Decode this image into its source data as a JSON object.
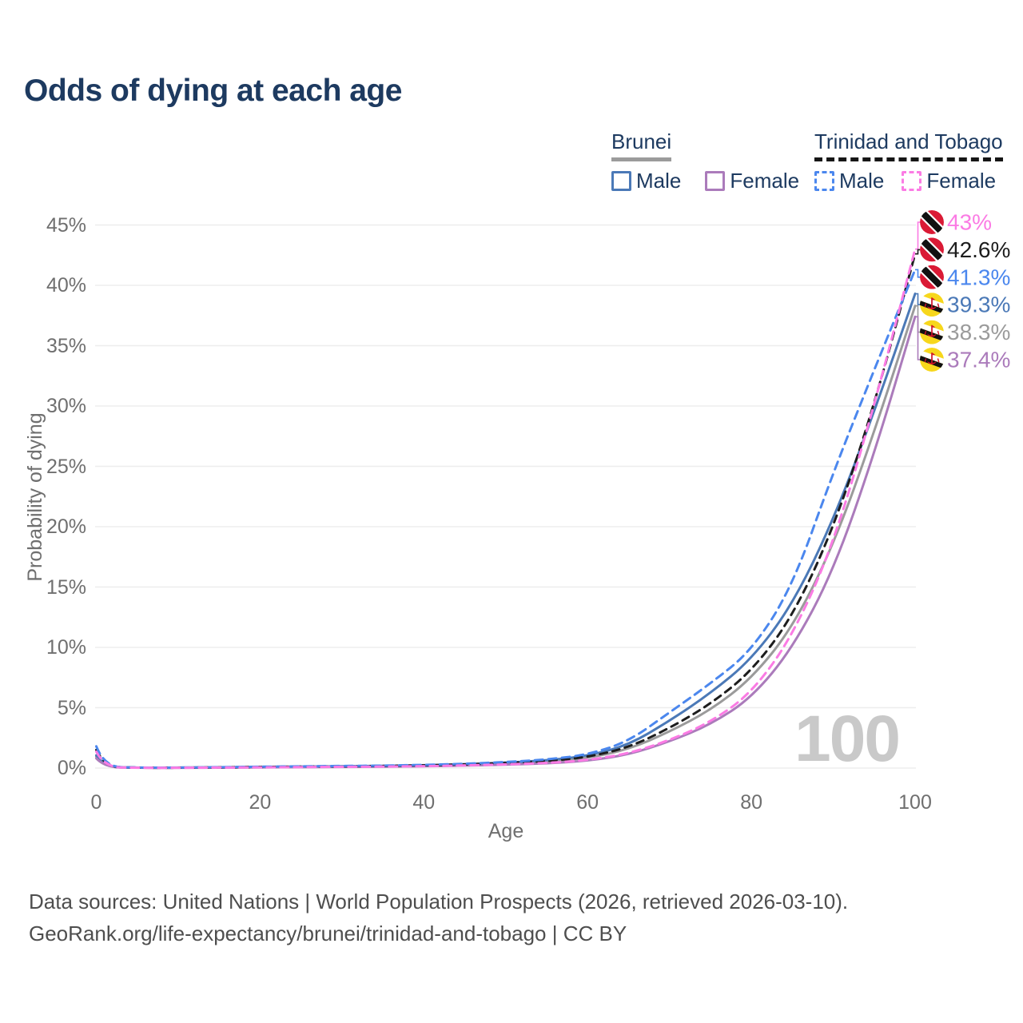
{
  "title": "Odds of dying at each age",
  "legend": {
    "groups": [
      {
        "name": "Brunei",
        "line_style": "solid",
        "items": [
          {
            "label": "Male",
            "series": "br_male"
          },
          {
            "label": "Female",
            "series": "br_female"
          }
        ]
      },
      {
        "name": "Trinidad and Tobago",
        "line_style": "dashed",
        "items": [
          {
            "label": "Male",
            "series": "tt_male"
          },
          {
            "label": "Female",
            "series": "tt_female"
          }
        ]
      }
    ]
  },
  "chart_data": {
    "type": "line",
    "title": "Odds of dying at each age",
    "xlabel": "Age",
    "ylabel": "Probability of dying",
    "xlim": [
      0,
      100
    ],
    "ylim": [
      0,
      45
    ],
    "grid": "horizontal",
    "legend_position": "top-right",
    "x_ticks": [
      {
        "label": "0",
        "value": 0
      },
      {
        "label": "20",
        "value": 20
      },
      {
        "label": "40",
        "value": 40
      },
      {
        "label": "60",
        "value": 60
      },
      {
        "label": "80",
        "value": 80
      },
      {
        "label": "100",
        "value": 100
      }
    ],
    "y_ticks": [
      {
        "label": "0%",
        "value": 0
      },
      {
        "label": "5%",
        "value": 5
      },
      {
        "label": "10%",
        "value": 10
      },
      {
        "label": "15%",
        "value": 15
      },
      {
        "label": "20%",
        "value": 20
      },
      {
        "label": "25%",
        "value": 25
      },
      {
        "label": "30%",
        "value": 30
      },
      {
        "label": "35%",
        "value": 35
      },
      {
        "label": "40%",
        "value": 40
      },
      {
        "label": "45%",
        "value": 45
      }
    ],
    "ages": [
      0,
      1,
      5,
      10,
      15,
      20,
      25,
      30,
      35,
      40,
      45,
      50,
      55,
      60,
      65,
      70,
      75,
      80,
      85,
      90,
      95,
      100
    ],
    "series": [
      {
        "key": "br_total",
        "country": "Brunei",
        "sex": "combined",
        "flag": "brunei",
        "color": "#9b9b9b",
        "dashed": false,
        "end_label": "38.3%",
        "values": [
          0.95,
          0.08,
          0.024,
          0.026,
          0.05,
          0.08,
          0.1,
          0.12,
          0.15,
          0.2,
          0.27,
          0.38,
          0.52,
          0.82,
          1.55,
          3.0,
          4.8,
          7.4,
          11.6,
          18.4,
          27.8,
          38.3
        ]
      },
      {
        "key": "br_male",
        "country": "Brunei",
        "sex": "male",
        "flag": "brunei",
        "color": "#4b79b7",
        "dashed": false,
        "end_label": "39.3%",
        "values": [
          1.05,
          0.09,
          0.026,
          0.03,
          0.06,
          0.09,
          0.12,
          0.15,
          0.18,
          0.23,
          0.32,
          0.45,
          0.62,
          1.0,
          1.9,
          3.9,
          6.2,
          9.0,
          13.5,
          20.5,
          29.5,
          39.3
        ]
      },
      {
        "key": "br_female",
        "country": "Brunei",
        "sex": "female",
        "flag": "brunei",
        "color": "#ab7bbb",
        "dashed": false,
        "end_label": "37.4%",
        "values": [
          0.8,
          0.07,
          0.02,
          0.022,
          0.035,
          0.05,
          0.07,
          0.09,
          0.11,
          0.15,
          0.2,
          0.28,
          0.38,
          0.6,
          1.1,
          2.2,
          3.6,
          5.8,
          9.9,
          16.3,
          26.0,
          37.4
        ]
      },
      {
        "key": "tt_total",
        "country": "Trinidad and Tobago",
        "sex": "combined",
        "flag": "trinidad-and-tobago",
        "color": "#1d1d1d",
        "dashed": true,
        "end_label": "42.6%",
        "values": [
          1.5,
          0.1,
          0.028,
          0.028,
          0.055,
          0.09,
          0.12,
          0.14,
          0.17,
          0.22,
          0.3,
          0.42,
          0.57,
          0.9,
          1.7,
          3.3,
          5.3,
          8.0,
          12.5,
          19.8,
          30.0,
          42.6
        ]
      },
      {
        "key": "tt_male",
        "country": "Trinidad and Tobago",
        "sex": "male",
        "flag": "trinidad-and-tobago",
        "color": "#4b87ee",
        "dashed": true,
        "end_label": "41.3%",
        "values": [
          1.8,
          0.12,
          0.03,
          0.032,
          0.07,
          0.11,
          0.14,
          0.17,
          0.2,
          0.26,
          0.35,
          0.5,
          0.7,
          1.1,
          2.2,
          4.6,
          7.0,
          9.7,
          15.0,
          24.5,
          33.0,
          41.3
        ]
      },
      {
        "key": "tt_female",
        "country": "Trinidad and Tobago",
        "sex": "female",
        "flag": "trinidad-and-tobago",
        "color": "#fb7be4",
        "dashed": true,
        "end_label": "43%",
        "values": [
          1.35,
          0.09,
          0.022,
          0.022,
          0.04,
          0.06,
          0.08,
          0.1,
          0.12,
          0.16,
          0.22,
          0.3,
          0.42,
          0.65,
          1.2,
          2.3,
          3.8,
          6.2,
          10.9,
          18.5,
          30.0,
          43.0
        ]
      }
    ],
    "watermark": "100"
  },
  "footer": {
    "line1": "Data sources: United Nations | World Population Prospects (2026, retrieved 2026-03-10).",
    "line2": "GeoRank.org/life-expectancy/brunei/trinidad-and-tobago | CC BY"
  }
}
